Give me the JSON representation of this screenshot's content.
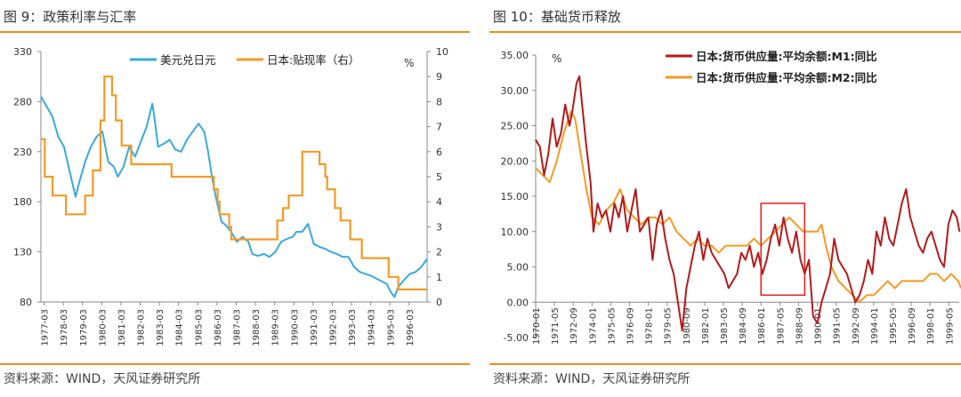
{
  "colors": {
    "accent_rule": "#f08c28",
    "usd_jpy": "#3aa9dc",
    "discount_rate": "#f29a27",
    "m1": "#b31b1b",
    "m2": "#f59a23",
    "highlight_box": "#e02020"
  },
  "left": {
    "title": "图 9：政策利率与汇率",
    "source": "资料来源：WIND，天风证券研究所",
    "chart_data": {
      "type": "line",
      "left_axis": {
        "ylim": [
          80,
          330
        ],
        "ticks": [
          "330",
          "280",
          "230",
          "180",
          "130",
          "80"
        ]
      },
      "right_axis": {
        "unit": "%",
        "ylim": [
          0,
          10
        ],
        "ticks": [
          "10",
          "9",
          "8",
          "7",
          "6",
          "5",
          "4",
          "3",
          "2",
          "1",
          "0"
        ]
      },
      "x_ticks": [
        "1977-03",
        "1978-03",
        "1979-03",
        "1980-03",
        "1981-03",
        "1982-03",
        "1983-03",
        "1984-03",
        "1985-03",
        "1986-03",
        "1987-03",
        "1988-03",
        "1989-03",
        "1990-03",
        "1991-03",
        "1992-03",
        "1993-03",
        "1994-03",
        "1995-03",
        "1996-03"
      ],
      "xlim": [
        1977.0,
        1997.1
      ],
      "legend_position": "top",
      "series": [
        {
          "name": "美元兑日元",
          "axis": "left",
          "x": [
            1977.0,
            1977.3,
            1977.6,
            1977.9,
            1978.2,
            1978.5,
            1978.8,
            1979.0,
            1979.3,
            1979.6,
            1979.9,
            1980.2,
            1980.5,
            1980.8,
            1981.0,
            1981.3,
            1981.6,
            1981.9,
            1982.2,
            1982.5,
            1982.8,
            1982.9,
            1983.1,
            1983.4,
            1983.7,
            1984.0,
            1984.3,
            1984.6,
            1984.9,
            1985.2,
            1985.5,
            1985.7,
            1985.9,
            1986.1,
            1986.4,
            1986.6,
            1986.9,
            1987.2,
            1987.5,
            1987.8,
            1988.0,
            1988.3,
            1988.6,
            1988.9,
            1989.2,
            1989.5,
            1989.8,
            1990.1,
            1990.3,
            1990.6,
            1990.9,
            1991.2,
            1991.5,
            1991.8,
            1992.1,
            1992.4,
            1992.7,
            1993.0,
            1993.3,
            1993.6,
            1993.9,
            1994.2,
            1994.5,
            1994.8,
            1995.0,
            1995.2,
            1995.4,
            1995.6,
            1995.9,
            1996.2,
            1996.5,
            1996.8,
            1997.1
          ],
          "y": [
            285,
            275,
            265,
            245,
            235,
            210,
            185,
            200,
            220,
            235,
            245,
            250,
            220,
            215,
            205,
            215,
            235,
            225,
            240,
            255,
            278,
            265,
            235,
            238,
            242,
            232,
            230,
            242,
            250,
            258,
            250,
            230,
            205,
            185,
            160,
            157,
            150,
            140,
            145,
            140,
            128,
            126,
            128,
            125,
            130,
            140,
            143,
            145,
            150,
            150,
            158,
            138,
            135,
            133,
            130,
            128,
            125,
            125,
            115,
            110,
            108,
            106,
            103,
            100,
            98,
            90,
            85,
            95,
            102,
            108,
            110,
            115,
            123
          ]
        },
        {
          "name": "日本:贴现率（右）",
          "axis": "right",
          "x": [
            1977.0,
            1977.2,
            1977.6,
            1977.9,
            1978.3,
            1979.3,
            1979.7,
            1980.1,
            1980.3,
            1980.7,
            1980.9,
            1981.2,
            1981.7,
            1983.8,
            1986.0,
            1986.2,
            1986.3,
            1986.8,
            1986.9,
            1989.3,
            1989.6,
            1989.9,
            1990.6,
            1991.5,
            1991.8,
            1991.9,
            1992.3,
            1992.6,
            1993.1,
            1993.7,
            1995.1,
            1995.6,
            1997.1
          ],
          "y": [
            6.5,
            5.0,
            4.25,
            4.25,
            3.5,
            4.25,
            5.25,
            7.25,
            9.0,
            8.25,
            7.25,
            6.25,
            5.5,
            5.0,
            4.5,
            4.0,
            3.5,
            3.0,
            2.5,
            3.25,
            3.75,
            4.25,
            6.0,
            5.5,
            5.0,
            4.5,
            3.75,
            3.25,
            2.5,
            1.75,
            1.0,
            0.5,
            0.5
          ]
        }
      ]
    }
  },
  "right": {
    "title": "图 10：基础货币释放",
    "source": "资料来源：WIND，天风证券研究所",
    "chart_data": {
      "type": "line",
      "y_axis": {
        "unit": "%",
        "ylim": [
          -5,
          35
        ],
        "ticks": [
          "35.00",
          "30.00",
          "25.00",
          "20.00",
          "15.00",
          "10.00",
          "5.00",
          "0.00",
          "-5.00"
        ]
      },
      "x_ticks": [
        "1970-01",
        "1971-05",
        "1972-09",
        "1974-01",
        "1975-05",
        "1976-09",
        "1978-01",
        "1979-05",
        "1980-09",
        "1982-01",
        "1983-05",
        "1984-09",
        "1986-01",
        "1987-05",
        "1988-09",
        "1990-01",
        "1991-05",
        "1992-09",
        "1994-01",
        "1995-05",
        "1996-09",
        "1998-01",
        "1999-05"
      ],
      "xlim": [
        1970.0,
        2000.2
      ],
      "legend_position": "top",
      "highlight_box": {
        "x": [
          1986.0,
          1989.1
        ],
        "y": [
          1.0,
          14.0
        ]
      },
      "series": [
        {
          "name": "日本:货币供应量:平均余额:M1:同比",
          "x": [
            1970.0,
            1970.3,
            1970.6,
            1970.9,
            1971.2,
            1971.5,
            1971.8,
            1972.1,
            1972.4,
            1972.6,
            1972.9,
            1973.1,
            1973.3,
            1973.6,
            1973.9,
            1974.1,
            1974.4,
            1974.7,
            1975.0,
            1975.3,
            1975.6,
            1975.9,
            1976.2,
            1976.5,
            1976.8,
            1977.1,
            1977.4,
            1977.7,
            1978.0,
            1978.3,
            1978.6,
            1978.9,
            1979.2,
            1979.5,
            1979.8,
            1980.1,
            1980.4,
            1980.7,
            1981.0,
            1981.3,
            1981.6,
            1981.9,
            1982.2,
            1982.5,
            1982.8,
            1983.1,
            1983.4,
            1983.7,
            1984.0,
            1984.3,
            1984.6,
            1984.9,
            1985.2,
            1985.5,
            1985.8,
            1986.1,
            1986.4,
            1986.7,
            1987.0,
            1987.3,
            1987.6,
            1987.9,
            1988.2,
            1988.5,
            1988.8,
            1989.1,
            1989.4,
            1989.7,
            1990.0,
            1990.3,
            1990.6,
            1990.9,
            1991.2,
            1991.5,
            1991.8,
            1992.1,
            1992.4,
            1992.7,
            1993.0,
            1993.3,
            1993.6,
            1993.9,
            1994.2,
            1994.5,
            1994.8,
            1995.1,
            1995.4,
            1995.7,
            1996.0,
            1996.3,
            1996.6,
            1996.9,
            1997.2,
            1997.5,
            1997.8,
            1998.1,
            1998.4,
            1998.7,
            1999.0,
            1999.3,
            1999.6,
            1999.9,
            2000.1
          ],
          "y": [
            23,
            22,
            18,
            21,
            26,
            22,
            24,
            28,
            25,
            27,
            31,
            32,
            28,
            22,
            17,
            10,
            14,
            12,
            13,
            10,
            14,
            12,
            15,
            10,
            13,
            16,
            10,
            11,
            12,
            6,
            11,
            13,
            9,
            6,
            4,
            0,
            -4,
            2,
            5,
            8,
            10,
            6,
            9,
            7,
            6,
            5,
            4,
            2,
            3,
            4,
            7,
            6,
            8,
            5,
            7,
            4,
            6,
            9,
            11,
            8,
            12,
            9,
            7,
            10,
            6,
            4,
            6,
            -2,
            -3,
            0,
            2,
            4,
            9,
            6,
            5,
            4,
            2,
            0,
            1,
            3,
            6,
            4,
            10,
            8,
            12,
            9,
            8,
            11,
            14,
            16,
            12,
            10,
            8,
            7,
            9,
            10,
            8,
            6,
            5,
            11,
            13,
            12,
            10
          ]
        },
        {
          "name": "日本:货币供应量:平均余额:M2:同比",
          "x": [
            1970.0,
            1970.5,
            1971.0,
            1971.5,
            1972.0,
            1972.5,
            1972.8,
            1973.2,
            1973.6,
            1974.0,
            1974.5,
            1975.0,
            1975.5,
            1976.0,
            1976.5,
            1977.0,
            1977.5,
            1978.0,
            1978.5,
            1979.0,
            1979.5,
            1980.0,
            1980.5,
            1981.0,
            1981.5,
            1982.0,
            1982.5,
            1983.0,
            1983.5,
            1984.0,
            1984.5,
            1985.0,
            1985.5,
            1986.0,
            1986.5,
            1987.0,
            1987.5,
            1988.0,
            1988.5,
            1989.0,
            1989.5,
            1990.0,
            1990.3,
            1990.6,
            1991.0,
            1991.5,
            1992.0,
            1992.5,
            1993.0,
            1993.5,
            1994.0,
            1994.5,
            1995.0,
            1995.5,
            1996.0,
            1996.5,
            1997.0,
            1997.5,
            1998.0,
            1998.5,
            1999.0,
            1999.5,
            2000.0,
            2000.2
          ],
          "y": [
            19,
            18,
            17,
            20,
            24,
            27,
            26,
            21,
            16,
            12,
            11,
            13,
            14,
            16,
            13,
            12,
            11,
            12,
            12,
            11,
            12,
            10,
            9,
            8,
            9,
            8,
            8,
            7,
            8,
            8,
            8,
            8,
            9,
            8,
            9,
            10,
            11,
            12,
            11,
            10,
            10,
            10,
            11,
            8,
            5,
            3,
            2,
            1,
            0,
            1,
            1,
            2,
            3,
            2,
            3,
            3,
            3,
            3,
            4,
            4,
            3,
            4,
            3,
            2
          ]
        }
      ]
    }
  }
}
